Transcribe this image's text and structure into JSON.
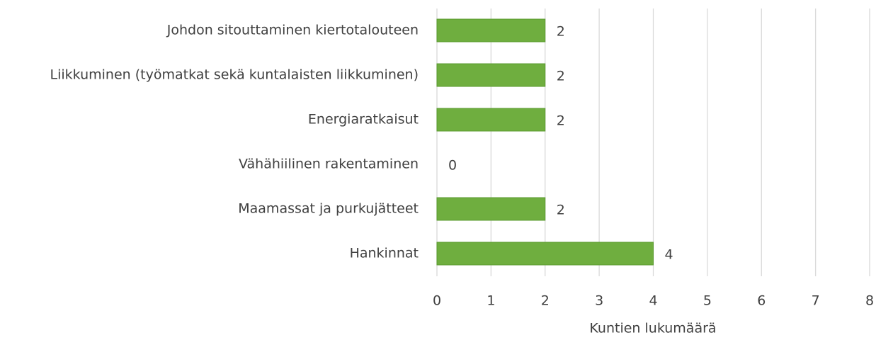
{
  "chart_data": {
    "type": "barh",
    "categories": [
      "Johdon sitouttaminen kiertotalouteen",
      "Liikkuminen (työmatkat sekä kuntalaisten liikkuminen)",
      "Energiaratkaisut",
      "Vähähiilinen rakentaminen",
      "Maamassat ja purkujätteet",
      "Hankinnat"
    ],
    "values": [
      2,
      2,
      2,
      0,
      2,
      4
    ],
    "color": "#6fae3f",
    "xlim": [
      0,
      8
    ],
    "xticks": [
      0,
      1,
      2,
      3,
      4,
      5,
      6,
      7,
      8
    ],
    "xlabel": "Kuntien lukumäärä",
    "grid": true
  }
}
